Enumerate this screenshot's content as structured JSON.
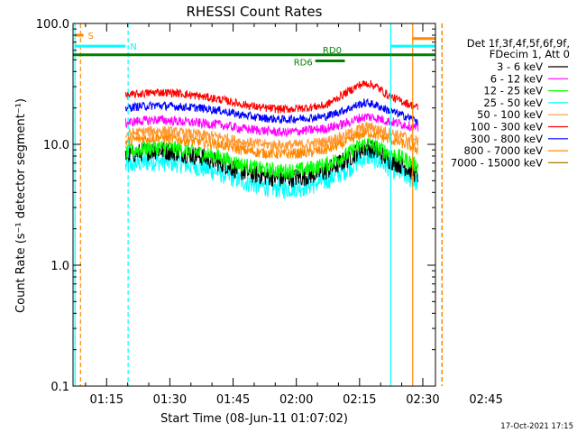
{
  "chart_data": {
    "type": "line",
    "title": "RHESSI Count Rates",
    "xlabel": "Start Time (08-Jun-11 01:07:02)",
    "ylabel": "Count Rate (s⁻¹ detector segment⁻¹)",
    "y_scale": "log",
    "ylim": [
      0.1,
      100.0
    ],
    "y_ticks": [
      {
        "value": 0.1,
        "label": "0.1"
      },
      {
        "value": 1.0,
        "label": "1.0"
      },
      {
        "value": 10.0,
        "label": "10.0"
      },
      {
        "value": 100.0,
        "label": "100.0"
      }
    ],
    "xlim_minutes": [
      7.03,
      93.0
    ],
    "x_ticks": [
      {
        "value": 15,
        "label": "01:15"
      },
      {
        "value": 30,
        "label": "01:30"
      },
      {
        "value": 45,
        "label": "01:45"
      },
      {
        "value": 60,
        "label": "02:00"
      },
      {
        "value": 75,
        "label": "02:15"
      },
      {
        "value": 90,
        "label": "02:30"
      },
      {
        "value": 105,
        "label": "02:45"
      }
    ],
    "legend_header": [
      "Det 1f,3f,4f,5f,6f,9f,",
      "FDecim 1, Att 0"
    ],
    "legend_position": "right",
    "series": [
      {
        "name": "3 - 6 keV",
        "color": "#000000",
        "x": [
          19.5,
          22,
          27,
          32,
          37,
          42,
          47,
          52,
          57,
          62,
          67,
          72,
          75,
          77,
          79,
          82,
          86,
          89
        ],
        "y": [
          8.0,
          8.5,
          9.0,
          8.6,
          8.0,
          7.0,
          6.0,
          5.5,
          5.2,
          5.4,
          6.0,
          7.5,
          9.0,
          9.5,
          8.8,
          7.5,
          6.5,
          5.5
        ]
      },
      {
        "name": "6 - 12 keV",
        "color": "#ff00ff",
        "x": [
          19.5,
          22,
          27,
          32,
          37,
          42,
          47,
          52,
          57,
          62,
          67,
          72,
          75,
          77,
          79,
          82,
          86,
          89
        ],
        "y": [
          15.0,
          15.5,
          16.0,
          15.5,
          15.0,
          14.5,
          13.5,
          13.0,
          12.5,
          13.0,
          13.5,
          15.0,
          16.5,
          17.0,
          16.5,
          15.5,
          14.5,
          13.5
        ]
      },
      {
        "name": "12 - 25 keV",
        "color": "#00ff00",
        "x": [
          19.5,
          22,
          27,
          32,
          37,
          42,
          47,
          52,
          57,
          62,
          67,
          72,
          75,
          77,
          79,
          82,
          86,
          89
        ],
        "y": [
          8.5,
          9.0,
          9.5,
          9.2,
          8.5,
          7.8,
          6.8,
          6.2,
          6.0,
          6.2,
          6.8,
          8.2,
          9.8,
          10.2,
          9.5,
          8.5,
          7.5,
          6.5
        ]
      },
      {
        "name": "25 - 50 keV",
        "color": "#00ffff",
        "x": [
          19.5,
          22,
          27,
          32,
          37,
          42,
          47,
          52,
          57,
          62,
          67,
          72,
          75,
          77,
          79,
          82,
          86,
          89
        ],
        "y": [
          6.5,
          7.0,
          7.3,
          7.0,
          6.5,
          5.8,
          5.0,
          4.5,
          4.3,
          4.5,
          5.0,
          6.2,
          7.5,
          8.0,
          7.5,
          6.5,
          5.5,
          4.8
        ]
      },
      {
        "name": "50 - 100 keV",
        "color": "#ff9933",
        "x": [
          19.5,
          22,
          27,
          32,
          37,
          42,
          47,
          52,
          57,
          62,
          67,
          72,
          75,
          77,
          79,
          82,
          86,
          89
        ],
        "y": [
          12.0,
          12.5,
          13.0,
          12.5,
          12.0,
          11.5,
          10.5,
          10.0,
          9.8,
          10.0,
          10.5,
          12.0,
          13.5,
          14.0,
          13.5,
          12.5,
          11.5,
          10.5
        ]
      },
      {
        "name": "100 - 300 keV",
        "color": "#ff0000",
        "x": [
          19.5,
          22,
          27,
          32,
          37,
          42,
          47,
          52,
          57,
          62,
          67,
          72,
          75,
          77,
          79,
          82,
          86,
          89
        ],
        "y": [
          25.0,
          26.0,
          27.0,
          26.5,
          25.0,
          23.5,
          21.5,
          20.0,
          19.5,
          20.0,
          21.0,
          27.0,
          31.0,
          32.0,
          30.0,
          25.0,
          22.0,
          20.0
        ]
      },
      {
        "name": "300 - 800 keV",
        "color": "#0000ff",
        "x": [
          19.5,
          22,
          27,
          32,
          37,
          42,
          47,
          52,
          57,
          62,
          67,
          72,
          75,
          77,
          79,
          82,
          86,
          89
        ],
        "y": [
          20.0,
          20.5,
          21.0,
          20.5,
          20.0,
          19.0,
          17.5,
          16.5,
          16.0,
          16.5,
          17.0,
          19.5,
          21.5,
          22.0,
          21.0,
          19.0,
          17.0,
          15.5
        ]
      },
      {
        "name": "800 - 7000 keV",
        "color": "#ff8800",
        "x": [
          19.5,
          22,
          27,
          32,
          37,
          42,
          47,
          52,
          57,
          62,
          67,
          72,
          75,
          77,
          79,
          82,
          86,
          89
        ],
        "y": [
          10.5,
          11.0,
          11.5,
          11.0,
          10.5,
          10.0,
          9.0,
          8.5,
          8.3,
          8.5,
          9.0,
          10.5,
          12.0,
          12.5,
          12.0,
          11.0,
          10.0,
          9.0
        ]
      },
      {
        "name": "7000 - 15000 keV",
        "color": "#b07800",
        "x": [],
        "y": []
      }
    ],
    "annotations": {
      "attenuator_segments": [
        {
          "label": "S",
          "color": "#ff8800",
          "x": [
            7.5,
            9.5
          ],
          "y": 80.0
        },
        {
          "label": "N",
          "color": "#00ffff",
          "x": [
            7.5,
            19.5
          ],
          "y": 65.0
        },
        {
          "label": "",
          "color": "#00ffff",
          "x": [
            82.5,
            93.0
          ],
          "y": 65.0
        },
        {
          "label": "",
          "color": "#ff8800",
          "x": [
            87.5,
            93.0
          ],
          "y": 75.0
        }
      ],
      "decimation_segments": [
        {
          "label": "RD0",
          "color": "#008000",
          "x": [
            7.03,
            93.0
          ],
          "y": 55.0
        },
        {
          "label": "RD6",
          "color": "#008000",
          "x": [
            64.5,
            71.5
          ],
          "y": 49.0
        }
      ],
      "vertical_lines": [
        {
          "x": 7.5,
          "color": "#00ffff",
          "dashed": false
        },
        {
          "x": 8.8,
          "color": "#ff8800",
          "dashed": true
        },
        {
          "x": 20.1,
          "color": "#00ffff",
          "dashed": true
        },
        {
          "x": 82.4,
          "color": "#00ffff",
          "dashed": false
        },
        {
          "x": 87.6,
          "color": "#ff8800",
          "dashed": false
        },
        {
          "x": 94.5,
          "color": "#00ffff",
          "dashed": true
        },
        {
          "x": 94.6,
          "color": "#ff8800",
          "dashed": true
        }
      ]
    }
  },
  "footer": {
    "timestamp": "17-Oct-2021 17:15"
  }
}
